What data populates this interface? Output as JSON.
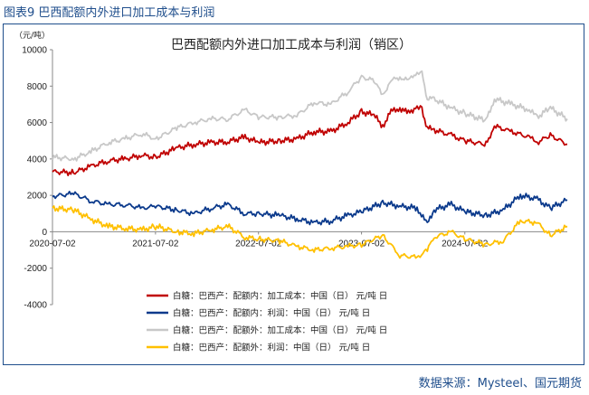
{
  "figure_label": "图表9  巴西配额内外进口加工成本与利润",
  "source": "数据来源：Mysteel、国元期货",
  "chart_data": {
    "type": "line",
    "title": "巴西配额内外进口加工成本与利润（销区）",
    "unit": "（元/吨）",
    "ylim": [
      -4000,
      10000
    ],
    "yticks": [
      "-4000",
      "-2000",
      "0",
      "2000",
      "4000",
      "6000",
      "8000",
      "10000"
    ],
    "xlim": [
      "2020-07-02",
      "2025-06-30"
    ],
    "xticks": [
      "2020-07-02",
      "2021-07-02",
      "2022-07-02",
      "2023-07-02",
      "2024-07-02"
    ],
    "grid": false,
    "legend_position": "bottom-left",
    "series": [
      {
        "name": "白糖：巴西产：配额内：加工成本：中国（日）  元/吨  日",
        "color": "#c00000",
        "points": [
          [
            "2020-07-02",
            3300
          ],
          [
            "2020-09-15",
            3250
          ],
          [
            "2020-11-15",
            3600
          ],
          [
            "2021-01-15",
            3900
          ],
          [
            "2021-03-15",
            4000
          ],
          [
            "2021-05-15",
            4200
          ],
          [
            "2021-07-02",
            4100
          ],
          [
            "2021-09-15",
            4600
          ],
          [
            "2021-11-15",
            4800
          ],
          [
            "2022-01-15",
            4900
          ],
          [
            "2022-03-15",
            4950
          ],
          [
            "2022-05-15",
            5200
          ],
          [
            "2022-07-02",
            4900
          ],
          [
            "2022-09-15",
            5000
          ],
          [
            "2022-11-15",
            5100
          ],
          [
            "2023-01-15",
            5500
          ],
          [
            "2023-03-15",
            5500
          ],
          [
            "2023-05-15",
            6000
          ],
          [
            "2023-07-02",
            6600
          ],
          [
            "2023-08-15",
            6400
          ],
          [
            "2023-09-15",
            5800
          ],
          [
            "2023-10-15",
            6600
          ],
          [
            "2023-11-15",
            6800
          ],
          [
            "2023-12-15",
            6500
          ],
          [
            "2024-01-15",
            6900
          ],
          [
            "2024-02-01",
            6700
          ],
          [
            "2024-02-20",
            5700
          ],
          [
            "2024-03-15",
            5600
          ],
          [
            "2024-05-15",
            5300
          ],
          [
            "2024-07-02",
            5000
          ],
          [
            "2024-09-15",
            4800
          ],
          [
            "2024-10-15",
            5800
          ],
          [
            "2024-12-15",
            5500
          ],
          [
            "2025-02-15",
            5200
          ],
          [
            "2025-03-15",
            4900
          ],
          [
            "2025-05-01",
            5300
          ],
          [
            "2025-06-30",
            4800
          ]
        ]
      },
      {
        "name": "白糖：巴西产：配额内：利润：中国（日）  元/吨  日",
        "color": "#0b3a8c",
        "points": [
          [
            "2020-07-02",
            1950
          ],
          [
            "2020-09-15",
            2100
          ],
          [
            "2020-11-15",
            1700
          ],
          [
            "2021-01-15",
            1500
          ],
          [
            "2021-03-15",
            1500
          ],
          [
            "2021-05-15",
            1300
          ],
          [
            "2021-07-02",
            1400
          ],
          [
            "2021-09-15",
            1200
          ],
          [
            "2021-11-15",
            1000
          ],
          [
            "2022-01-15",
            1300
          ],
          [
            "2022-03-15",
            1500
          ],
          [
            "2022-05-15",
            1000
          ],
          [
            "2022-07-02",
            1000
          ],
          [
            "2022-09-15",
            900
          ],
          [
            "2022-11-15",
            700
          ],
          [
            "2023-01-15",
            500
          ],
          [
            "2023-03-15",
            600
          ],
          [
            "2023-05-15",
            900
          ],
          [
            "2023-07-02",
            1100
          ],
          [
            "2023-09-15",
            1600
          ],
          [
            "2023-11-15",
            1400
          ],
          [
            "2024-01-15",
            1300
          ],
          [
            "2024-02-20",
            400
          ],
          [
            "2024-03-15",
            1200
          ],
          [
            "2024-05-15",
            1500
          ],
          [
            "2024-07-02",
            1100
          ],
          [
            "2024-09-15",
            900
          ],
          [
            "2024-11-15",
            1200
          ],
          [
            "2025-01-15",
            2000
          ],
          [
            "2025-03-15",
            1800
          ],
          [
            "2025-05-01",
            1300
          ],
          [
            "2025-06-30",
            1750
          ]
        ]
      },
      {
        "name": "白糖：巴西产：配额外：加工成本：中国（日）  元/吨  日",
        "color": "#c8c8c8",
        "points": [
          [
            "2020-07-02",
            4100
          ],
          [
            "2020-09-15",
            4000
          ],
          [
            "2020-11-15",
            4400
          ],
          [
            "2021-01-15",
            4900
          ],
          [
            "2021-03-15",
            5100
          ],
          [
            "2021-05-15",
            5400
          ],
          [
            "2021-07-02",
            5100
          ],
          [
            "2021-09-15",
            5700
          ],
          [
            "2021-11-15",
            6000
          ],
          [
            "2022-01-15",
            6200
          ],
          [
            "2022-03-15",
            6200
          ],
          [
            "2022-05-15",
            6700
          ],
          [
            "2022-07-02",
            6300
          ],
          [
            "2022-09-15",
            6300
          ],
          [
            "2022-11-15",
            6400
          ],
          [
            "2023-01-15",
            7100
          ],
          [
            "2023-03-15",
            7000
          ],
          [
            "2023-05-15",
            7700
          ],
          [
            "2023-07-02",
            8500
          ],
          [
            "2023-08-15",
            8300
          ],
          [
            "2023-09-15",
            7500
          ],
          [
            "2023-10-15",
            8300
          ],
          [
            "2023-11-15",
            8500
          ],
          [
            "2023-12-15",
            8300
          ],
          [
            "2024-01-15",
            8800
          ],
          [
            "2024-02-01",
            8700
          ],
          [
            "2024-02-20",
            7300
          ],
          [
            "2024-03-15",
            7300
          ],
          [
            "2024-05-15",
            6800
          ],
          [
            "2024-07-02",
            6500
          ],
          [
            "2024-09-15",
            6100
          ],
          [
            "2024-10-15",
            7300
          ],
          [
            "2024-12-15",
            7000
          ],
          [
            "2025-02-15",
            6700
          ],
          [
            "2025-03-15",
            6300
          ],
          [
            "2025-05-01",
            6800
          ],
          [
            "2025-06-30",
            6200
          ]
        ]
      },
      {
        "name": "白糖：巴西产：配额外：利润：中国（日）  元/吨  日",
        "color": "#ffc000",
        "points": [
          [
            "2020-07-02",
            1300
          ],
          [
            "2020-09-15",
            1200
          ],
          [
            "2020-11-15",
            700
          ],
          [
            "2021-01-15",
            300
          ],
          [
            "2021-03-15",
            200
          ],
          [
            "2021-05-15",
            100
          ],
          [
            "2021-07-02",
            300
          ],
          [
            "2021-09-15",
            0
          ],
          [
            "2021-11-15",
            -100
          ],
          [
            "2022-01-15",
            100
          ],
          [
            "2022-03-15",
            300
          ],
          [
            "2022-05-15",
            -300
          ],
          [
            "2022-07-02",
            -400
          ],
          [
            "2022-09-15",
            -500
          ],
          [
            "2022-11-15",
            -800
          ],
          [
            "2023-01-15",
            -1000
          ],
          [
            "2023-03-15",
            -900
          ],
          [
            "2023-05-15",
            -800
          ],
          [
            "2023-07-02",
            -700
          ],
          [
            "2023-09-15",
            -200
          ],
          [
            "2023-11-15",
            -1300
          ],
          [
            "2024-01-15",
            -1400
          ],
          [
            "2024-02-20",
            -1000
          ],
          [
            "2024-03-15",
            -300
          ],
          [
            "2024-05-15",
            0
          ],
          [
            "2024-07-02",
            -400
          ],
          [
            "2024-09-15",
            -700
          ],
          [
            "2024-11-15",
            -500
          ],
          [
            "2025-01-15",
            600
          ],
          [
            "2025-03-15",
            500
          ],
          [
            "2025-05-01",
            -200
          ],
          [
            "2025-06-30",
            300
          ]
        ]
      }
    ]
  }
}
